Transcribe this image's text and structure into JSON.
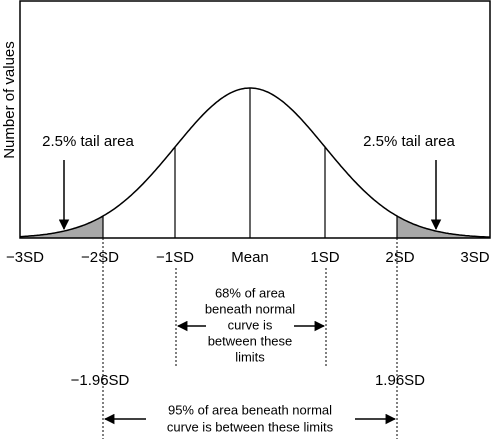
{
  "y_axis_label": "Number of values",
  "tail_labels": [
    "2.5% tail area",
    "2.5% tail area"
  ],
  "x_labels": [
    "−3SD",
    "−2SD",
    "−1SD",
    "Mean",
    "1SD",
    "2SD",
    "3SD"
  ],
  "inner_note": {
    "lines": [
      "68% of area",
      "beneath normal",
      "curve is",
      "between these",
      "limits"
    ]
  },
  "limit_labels": [
    "−1.96SD",
    "1.96SD"
  ],
  "outer_note": {
    "lines": [
      "95% of area beneath normal",
      "curve is between these limits"
    ]
  }
}
